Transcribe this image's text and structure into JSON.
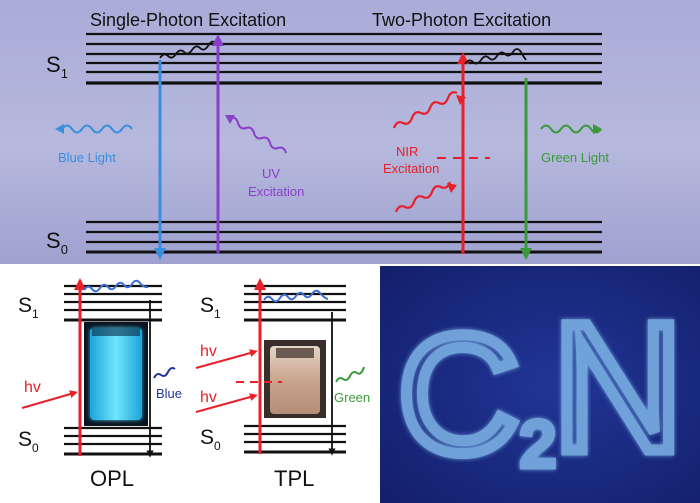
{
  "top_panel": {
    "heading_single": "Single-Photon Excitation",
    "heading_two": "Two-Photon Excitation",
    "s1_label": "S",
    "s1_sub": "1",
    "s0_label": "S",
    "s0_sub": "0",
    "blue_light": "Blue Light",
    "uv_line1": "UV",
    "uv_line2": "Excitation",
    "nir_line1": "NIR",
    "nir_line2": "Excitation",
    "green_light": "Green Light"
  },
  "opl_panel": {
    "s1_label": "S",
    "s1_sub": "1",
    "s0_label": "S",
    "s0_sub": "0",
    "hv": "hv",
    "emission": "Blue",
    "caption": "OPL"
  },
  "tpl_panel": {
    "s1_label": "S",
    "s1_sub": "1",
    "s0_label": "S",
    "s0_sub": "0",
    "hv_top": "hv",
    "hv_bottom": "hv",
    "emission": "Green",
    "caption": "TPL"
  },
  "photo_panel": {
    "main": "C",
    "sub": "2",
    "tail": "N"
  },
  "colors": {
    "panel_bg": "#a7a9d4",
    "blue": "#3a8ee0",
    "purple": "#8a3fc8",
    "red": "#e8202a",
    "green": "#3a9a3a",
    "navy": "#22349a",
    "photo_bg": "#18287e",
    "photo_glow": "#7fb6e8"
  }
}
